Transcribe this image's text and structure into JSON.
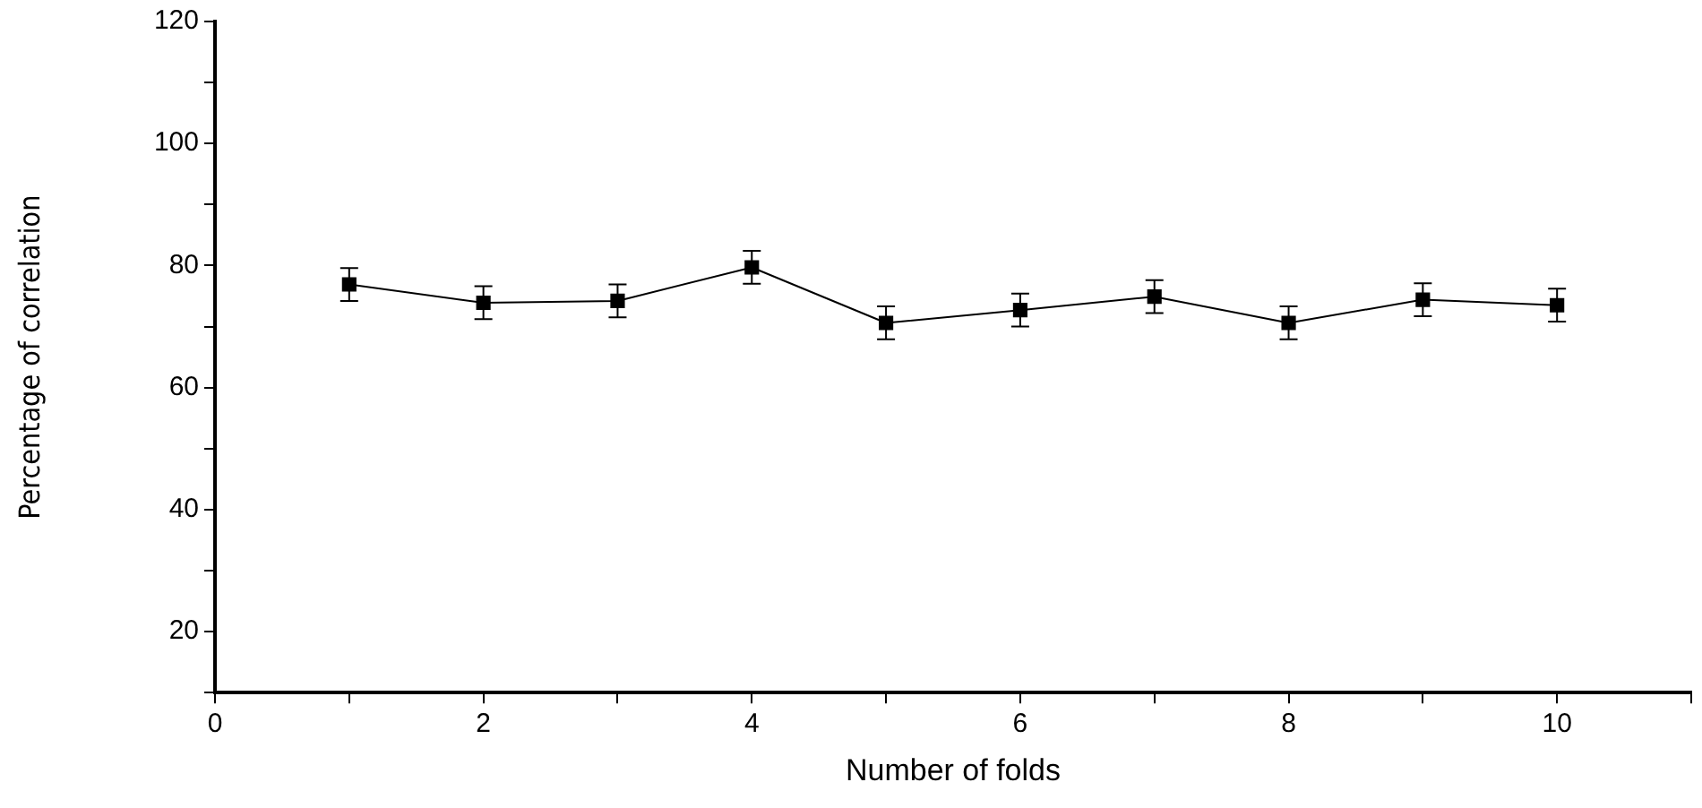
{
  "chart_data": {
    "type": "line",
    "xlabel": "Number of folds",
    "ylabel": "Percentage of correlation",
    "x": [
      1,
      2,
      3,
      4,
      5,
      6,
      7,
      8,
      9,
      10
    ],
    "series": [
      {
        "color": "#000000",
        "values": [
          76.9,
          73.9,
          74.2,
          79.7,
          70.6,
          72.7,
          74.9,
          70.6,
          74.4,
          73.5
        ],
        "errors": [
          2.7,
          2.7,
          2.7,
          2.7,
          2.7,
          2.7,
          2.7,
          2.7,
          2.7,
          2.7
        ]
      }
    ],
    "xlim": [
      0,
      11
    ],
    "xticks": [
      0,
      {
        "value": 1,
        "label": null
      },
      2,
      {
        "value": 3,
        "label": null
      },
      4,
      {
        "value": 5,
        "label": null
      },
      6,
      {
        "value": 7,
        "label": null
      },
      8,
      {
        "value": 9,
        "label": null
      },
      10,
      {
        "value": 11,
        "label": null
      }
    ],
    "ylim": [
      10,
      120
    ],
    "yticks": [
      {
        "value": 10,
        "label": null
      },
      20,
      {
        "value": 30,
        "label": null
      },
      40,
      {
        "value": 50,
        "label": null
      },
      60,
      {
        "value": 70,
        "label": null
      },
      80,
      {
        "value": 90,
        "label": null
      },
      100,
      {
        "value": 110,
        "label": null
      },
      120
    ],
    "grid": false,
    "legend": false,
    "marker": "square",
    "line_style": "solid"
  }
}
